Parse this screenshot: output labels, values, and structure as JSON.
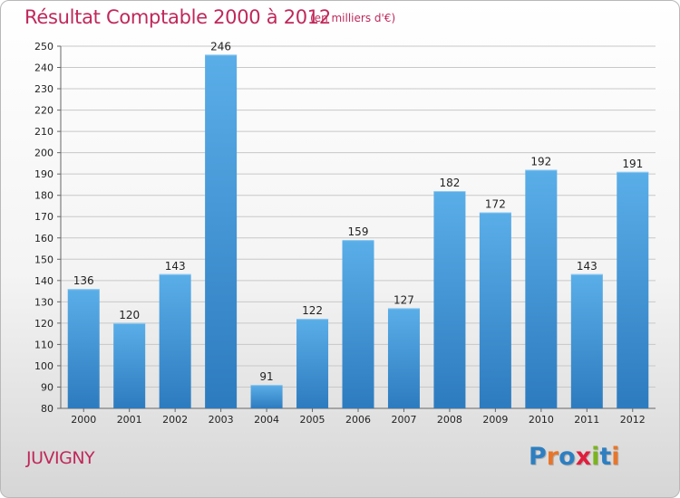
{
  "header": {
    "title": "Résultat Comptable 2000 à 2012",
    "unit": "(en milliers d'€)"
  },
  "footer": {
    "commune": "JUVIGNY",
    "logo_text": "Proxiti"
  },
  "colors": {
    "title": "#c0285a",
    "bar_top": "#5aaee8",
    "bar_bottom": "#2d7bbf",
    "grid": "#c8c8c8",
    "logo_letters": [
      "#2e7fc1",
      "#e8762a",
      "#2e7fc1",
      "#e01f3d",
      "#7ab51d",
      "#2e7fc1",
      "#e8762a"
    ]
  },
  "chart_data": {
    "type": "bar",
    "title": "Résultat Comptable 2000 à 2012",
    "ylabel": "en milliers d'€",
    "xlabel": "",
    "categories": [
      "2000",
      "2001",
      "2002",
      "2003",
      "2004",
      "2005",
      "2006",
      "2007",
      "2008",
      "2009",
      "2010",
      "2011",
      "2012"
    ],
    "values": [
      136,
      120,
      143,
      246,
      91,
      122,
      159,
      127,
      182,
      172,
      192,
      143,
      191
    ],
    "ylim": [
      80,
      250
    ],
    "yticks": [
      80,
      90,
      100,
      110,
      120,
      130,
      140,
      150,
      160,
      170,
      180,
      190,
      200,
      210,
      220,
      230,
      240,
      250
    ],
    "grid": true,
    "data_labels": true
  }
}
